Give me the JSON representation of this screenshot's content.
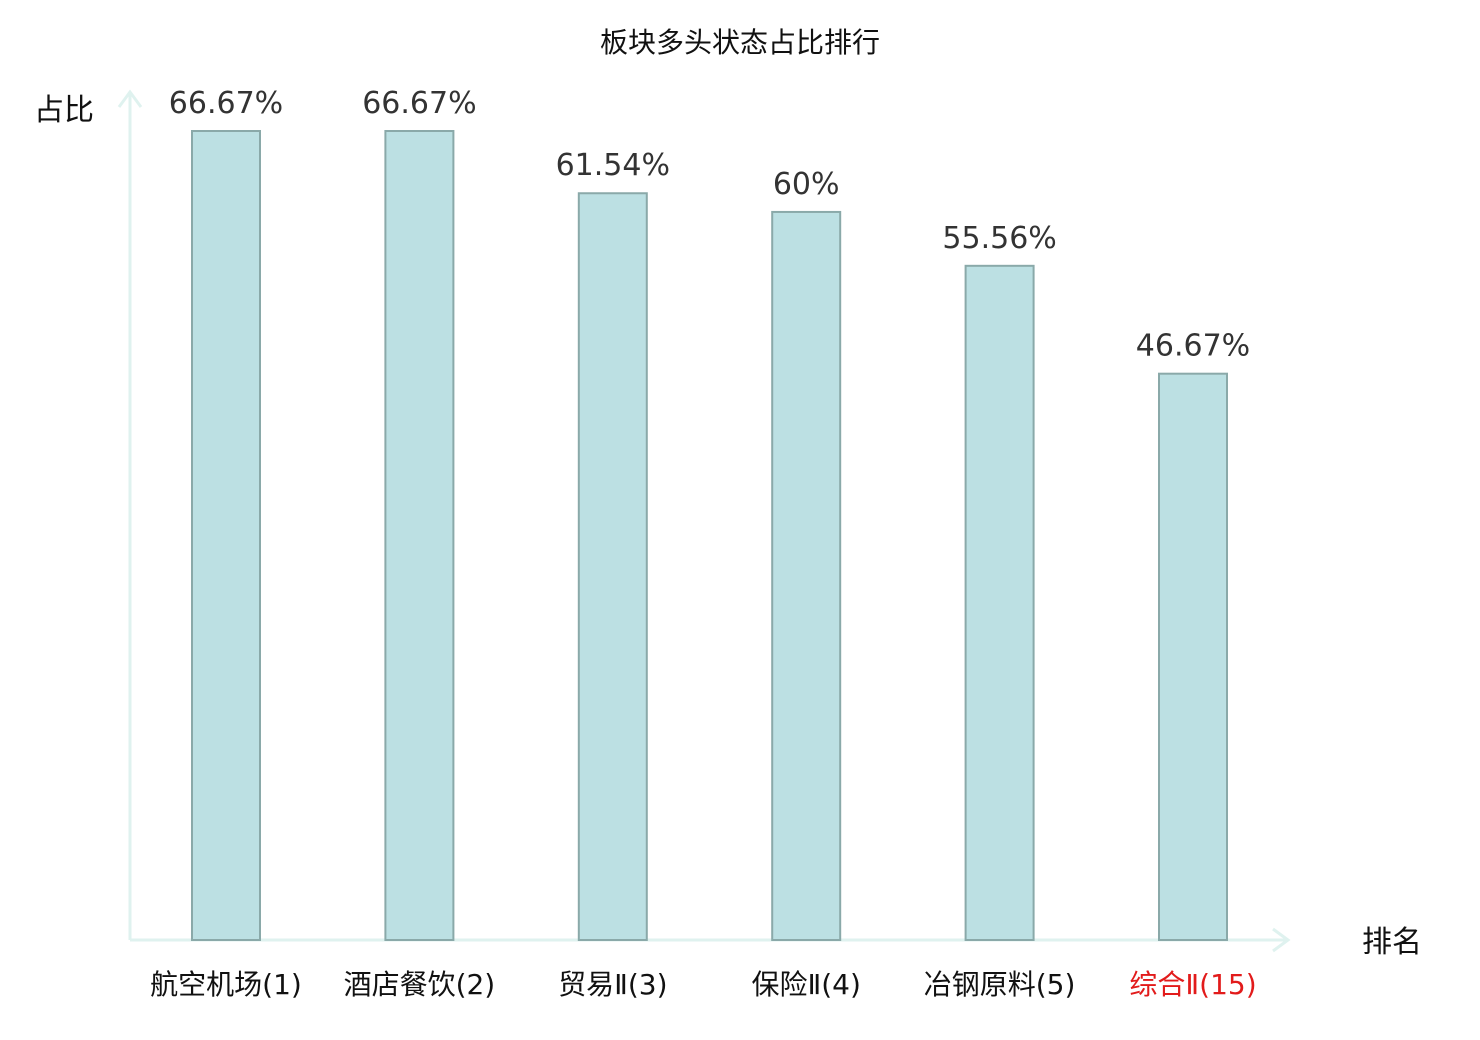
{
  "chart_data": {
    "type": "bar",
    "title": "板块多头状态占比排行",
    "ylabel": "占比",
    "xlabel": "排名",
    "categories": [
      "航空机场(1)",
      "酒店餐饮(2)",
      "贸易Ⅱ(3)",
      "保险Ⅱ(4)",
      "冶钢原料(5)",
      "综合Ⅱ(15)"
    ],
    "values": [
      66.67,
      66.67,
      61.54,
      60,
      55.56,
      46.67
    ],
    "value_labels": [
      "66.67%",
      "66.67%",
      "61.54%",
      "60%",
      "55.56%",
      "46.67%"
    ],
    "ylim": [
      0,
      70
    ],
    "grid": false,
    "legend": "none",
    "highlight_index": 5,
    "colors": {
      "bar_fill": "#bce0e3",
      "bar_stroke": "#8aa9a9",
      "axis": "#dff2ef",
      "category_text": "#111111",
      "highlight_text": "#e21b1b"
    }
  }
}
